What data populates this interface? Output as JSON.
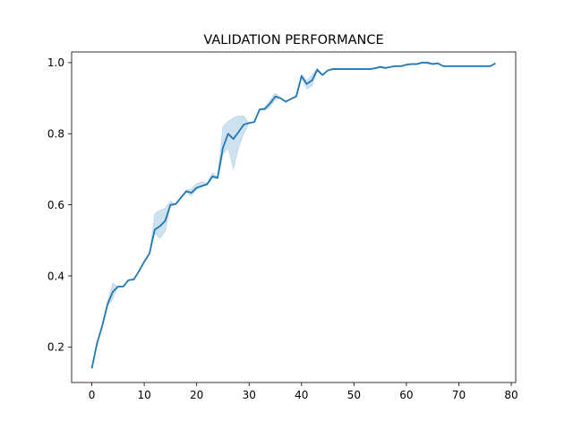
{
  "chart_data": {
    "type": "line",
    "title": "VALIDATION PERFORMANCE",
    "xlabel": "",
    "ylabel": "",
    "xlim": [
      -3.85,
      80.85
    ],
    "ylim": [
      0.1,
      1.03
    ],
    "xticks": [
      0,
      10,
      20,
      30,
      40,
      50,
      60,
      70,
      80
    ],
    "yticks": [
      0.2,
      0.4,
      0.6,
      0.8,
      1.0
    ],
    "xtick_labels": [
      "0",
      "10",
      "20",
      "30",
      "40",
      "50",
      "60",
      "70",
      "80"
    ],
    "ytick_labels": [
      "0.2",
      "0.4",
      "0.6",
      "0.8",
      "1.0"
    ],
    "grid": false,
    "legend": "none",
    "line_color": "#1f77b4",
    "band_color": "#1f77b4",
    "series": [
      {
        "x": [
          0,
          1,
          2,
          3,
          4,
          5,
          6,
          7,
          8,
          9,
          10,
          11,
          12,
          13,
          14,
          15,
          16,
          17,
          18,
          19,
          20,
          21,
          22,
          23,
          24,
          25,
          26,
          27,
          28,
          29,
          30,
          31,
          32,
          33,
          34,
          35,
          36,
          37,
          38,
          39,
          40,
          41,
          42,
          43,
          44,
          45,
          46,
          47,
          48,
          49,
          50,
          51,
          52,
          53,
          54,
          55,
          56,
          57,
          58,
          59,
          60,
          61,
          62,
          63,
          64,
          65,
          66,
          67,
          68,
          69,
          70,
          71,
          72,
          73,
          74,
          75,
          76,
          77
        ],
        "y": [
          0.14,
          0.21,
          0.26,
          0.32,
          0.355,
          0.37,
          0.37,
          0.388,
          0.39,
          0.413,
          0.44,
          0.463,
          0.53,
          0.54,
          0.555,
          0.6,
          0.602,
          0.62,
          0.638,
          0.634,
          0.648,
          0.653,
          0.658,
          0.68,
          0.676,
          0.76,
          0.8,
          0.785,
          0.805,
          0.826,
          0.83,
          0.833,
          0.868,
          0.87,
          0.885,
          0.905,
          0.9,
          0.89,
          0.898,
          0.905,
          0.962,
          0.94,
          0.95,
          0.98,
          0.965,
          0.978,
          0.982,
          0.982,
          0.982,
          0.982,
          0.982,
          0.982,
          0.982,
          0.982,
          0.984,
          0.988,
          0.985,
          0.988,
          0.99,
          0.99,
          0.994,
          0.996,
          0.996,
          1.0,
          1.0,
          0.996,
          0.998,
          0.99,
          0.99,
          0.99,
          0.99,
          0.99,
          0.99,
          0.99,
          0.99,
          0.99,
          0.99,
          0.998
        ],
        "lower": [
          0.14,
          0.21,
          0.26,
          0.315,
          0.335,
          0.37,
          0.37,
          0.388,
          0.39,
          0.413,
          0.44,
          0.463,
          0.52,
          0.505,
          0.525,
          0.595,
          0.602,
          0.62,
          0.635,
          0.625,
          0.643,
          0.65,
          0.655,
          0.675,
          0.672,
          0.74,
          0.76,
          0.7,
          0.76,
          0.8,
          0.83,
          0.833,
          0.868,
          0.865,
          0.875,
          0.895,
          0.9,
          0.89,
          0.898,
          0.905,
          0.955,
          0.925,
          0.935,
          0.975,
          0.965,
          0.978,
          0.982,
          0.982,
          0.982,
          0.982,
          0.982,
          0.982,
          0.982,
          0.982,
          0.984,
          0.985,
          0.983,
          0.988,
          0.99,
          0.99,
          0.992,
          0.994,
          0.994,
          0.998,
          0.996,
          0.994,
          0.997,
          0.99,
          0.99,
          0.99,
          0.99,
          0.99,
          0.99,
          0.99,
          0.99,
          0.99,
          0.99,
          0.998
        ],
        "upper": [
          0.14,
          0.21,
          0.26,
          0.33,
          0.38,
          0.37,
          0.37,
          0.388,
          0.39,
          0.413,
          0.44,
          0.463,
          0.575,
          0.585,
          0.59,
          0.61,
          0.602,
          0.62,
          0.642,
          0.645,
          0.66,
          0.665,
          0.662,
          0.69,
          0.68,
          0.82,
          0.835,
          0.845,
          0.85,
          0.85,
          0.83,
          0.833,
          0.868,
          0.875,
          0.895,
          0.915,
          0.9,
          0.89,
          0.898,
          0.905,
          0.968,
          0.95,
          0.965,
          0.985,
          0.965,
          0.978,
          0.982,
          0.982,
          0.982,
          0.982,
          0.982,
          0.982,
          0.982,
          0.982,
          0.984,
          0.99,
          0.987,
          0.988,
          0.99,
          0.99,
          0.996,
          0.998,
          0.998,
          1.002,
          1.002,
          0.998,
          0.999,
          0.99,
          0.99,
          0.99,
          0.99,
          0.99,
          0.99,
          0.99,
          0.99,
          0.99,
          0.99,
          0.998
        ]
      }
    ]
  }
}
